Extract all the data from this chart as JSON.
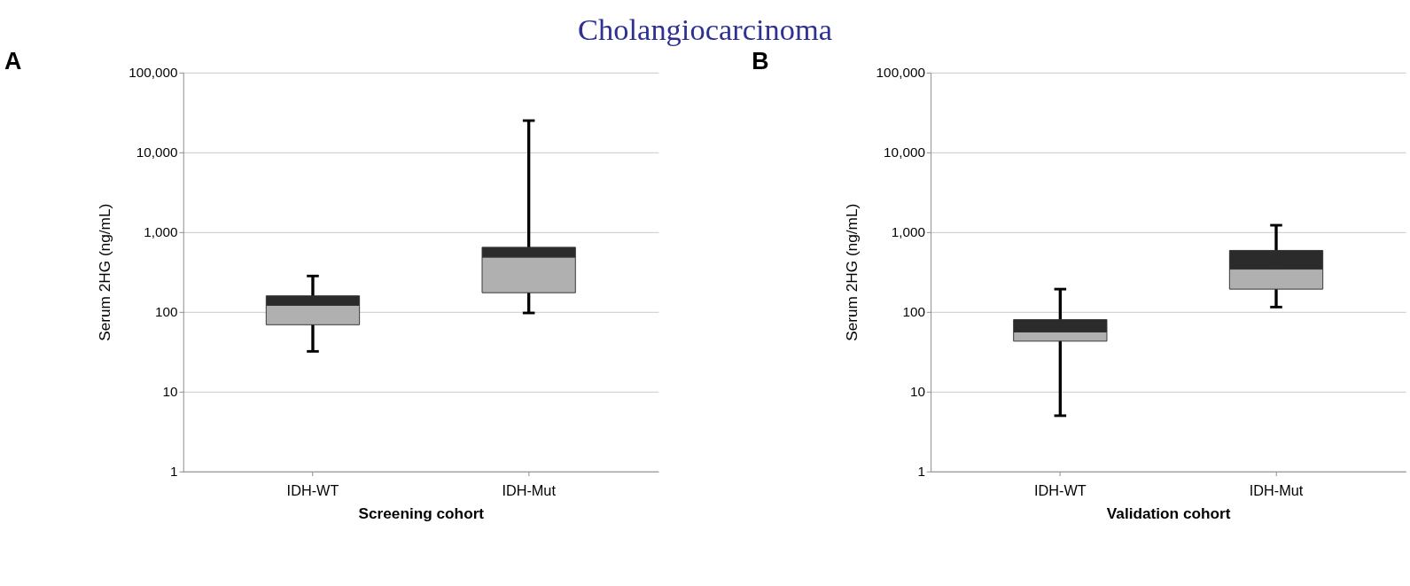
{
  "chart_data": [
    {
      "type": "box",
      "title": "A",
      "annotations": [
        "Cholangiocarcinoma"
      ],
      "xlabel": "Screening cohort",
      "ylabel": "Serum 2HG (ng/mL)",
      "categories": [
        "IDH-WT",
        "IDH-Mut"
      ],
      "log": true,
      "grid": "y",
      "ylim": [
        1,
        100000
      ],
      "yticks": [
        1,
        10,
        100,
        {
          "value": 1000,
          "label": "1,000"
        },
        {
          "value": 10000,
          "label": "10,000"
        },
        {
          "value": 100000,
          "label": "100,000"
        }
      ],
      "series": [
        {
          "colors": [
            "#b0b0b0",
            "#2b2b2b"
          ],
          "boxes": [
            {
              "low": 32,
              "q1": 69,
              "median": 121,
              "q3": 159,
              "high": 282
            },
            {
              "low": 97,
              "q1": 174,
              "median": 487,
              "q3": 646,
              "high": 25000
            }
          ]
        }
      ]
    },
    {
      "type": "box",
      "title": "B",
      "xlabel": "Validation cohort",
      "ylabel": "Serum 2HG (ng/mL)",
      "categories": [
        "IDH-WT",
        "IDH-Mut"
      ],
      "log": true,
      "grid": "y",
      "ylim": [
        1,
        100000
      ],
      "yticks": [
        1,
        10,
        100,
        {
          "value": 1000,
          "label": "1,000"
        },
        {
          "value": 10000,
          "label": "10,000"
        },
        {
          "value": 100000,
          "label": "100,000"
        }
      ],
      "series": [
        {
          "colors": [
            "#b0b0b0",
            "#2b2b2b"
          ],
          "boxes": [
            {
              "low": 5,
              "q1": 43,
              "median": 56,
              "q3": 80,
              "high": 193
            },
            {
              "low": 115,
              "q1": 193,
              "median": 344,
              "q3": 590,
              "high": 1220
            }
          ]
        }
      ]
    }
  ]
}
